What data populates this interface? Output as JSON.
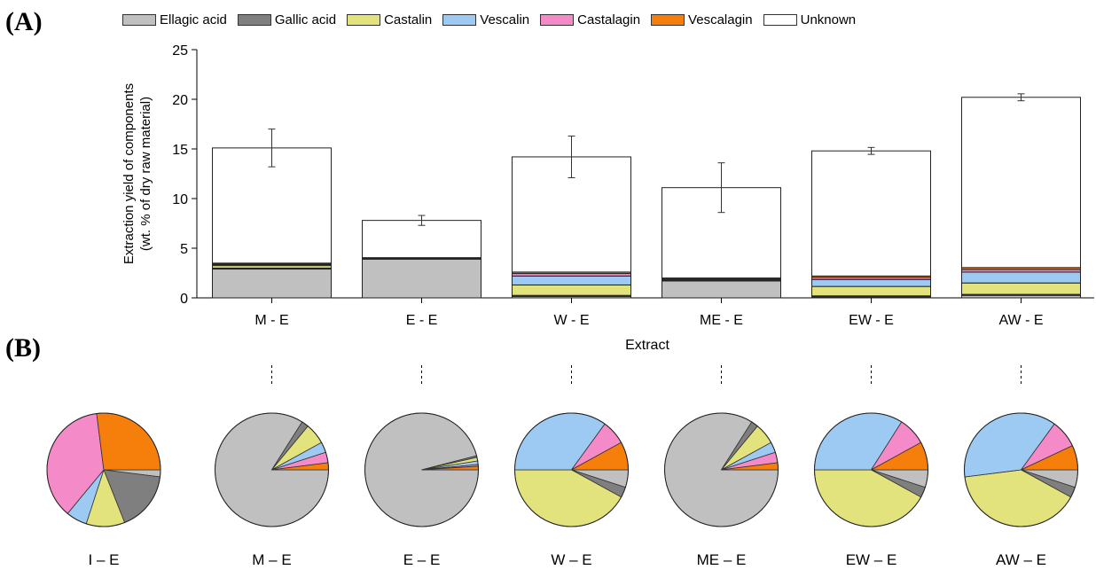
{
  "panel_labels": {
    "a": "(A)",
    "b": "(B)"
  },
  "legend": [
    {
      "name": "Ellagic acid",
      "color": "#c0c0c0"
    },
    {
      "name": "Gallic acid",
      "color": "#7f7f7f"
    },
    {
      "name": "Castalin",
      "color": "#e3e37d"
    },
    {
      "name": "Vescalin",
      "color": "#9dcaf2"
    },
    {
      "name": "Castalagin",
      "color": "#f58ac8"
    },
    {
      "name": "Vescalagin",
      "color": "#f57f0a"
    },
    {
      "name": "Unknown",
      "color": "#ffffff"
    }
  ],
  "chart_data": [
    {
      "type": "bar",
      "stacked": true,
      "xlabel": "Extract",
      "ylabel": [
        "Extraction yield of components",
        "(wt. % of dry raw material)"
      ],
      "ylim": [
        0,
        25
      ],
      "yticks": [
        0,
        5,
        10,
        15,
        20,
        25
      ],
      "categories": [
        "M - E",
        "E - E",
        "W - E",
        "ME - E",
        "EW - E",
        "AW - E"
      ],
      "series": [
        {
          "name": "Ellagic acid",
          "values": [
            2.9,
            3.9,
            0.15,
            1.7,
            0.1,
            0.25
          ]
        },
        {
          "name": "Gallic acid",
          "values": [
            0.1,
            0.05,
            0.1,
            0.05,
            0.1,
            0.1
          ]
        },
        {
          "name": "Castalin",
          "values": [
            0.25,
            0.02,
            1.05,
            0.1,
            0.95,
            1.15
          ]
        },
        {
          "name": "Vescalin",
          "values": [
            0.1,
            0.02,
            0.9,
            0.05,
            0.7,
            1.1
          ]
        },
        {
          "name": "Castalagin",
          "values": [
            0.1,
            0.02,
            0.25,
            0.05,
            0.2,
            0.25
          ]
        },
        {
          "name": "Vescalagin",
          "values": [
            0.05,
            0.04,
            0.15,
            0.05,
            0.15,
            0.2
          ]
        },
        {
          "name": "Unknown",
          "values": [
            11.6,
            3.75,
            11.6,
            9.1,
            12.6,
            17.15
          ]
        }
      ],
      "totals": [
        15.1,
        7.8,
        14.2,
        11.1,
        14.8,
        20.2
      ],
      "errors": [
        1.9,
        0.5,
        2.1,
        2.5,
        0.35,
        0.35
      ]
    },
    {
      "type": "pie",
      "categories": [
        "I – E",
        "M – E",
        "E – E",
        "W – E",
        "ME – E",
        "EW – E",
        "AW – E"
      ],
      "slice_order": [
        "Ellagic acid",
        "Gallic acid",
        "Castalin",
        "Vescalin",
        "Castalagin",
        "Vescalagin"
      ],
      "slices": [
        [
          2,
          17,
          11,
          6,
          37,
          27
        ],
        [
          84,
          2,
          6,
          3,
          3,
          2
        ],
        [
          96,
          0.5,
          1,
          1,
          0.5,
          1
        ],
        [
          5,
          3,
          42,
          35,
          7,
          8
        ],
        [
          84,
          2,
          6,
          3,
          3,
          2
        ],
        [
          5,
          3,
          42,
          34,
          8,
          8
        ],
        [
          5,
          3,
          40,
          37,
          8,
          7
        ]
      ]
    }
  ]
}
